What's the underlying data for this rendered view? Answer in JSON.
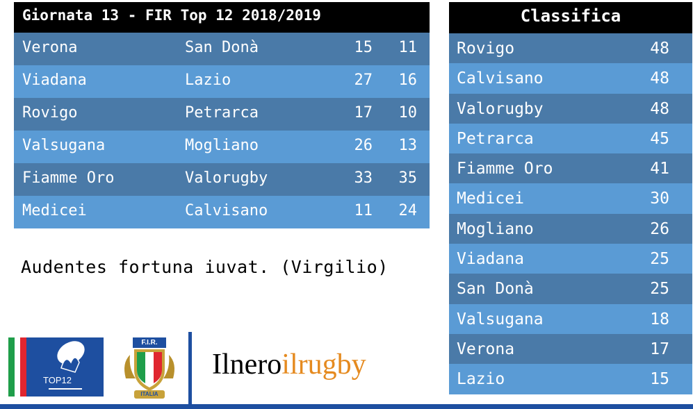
{
  "results": {
    "title": "Giornata 13 - FIR Top 12 2018/2019",
    "matches": [
      {
        "home": "Verona",
        "away": "San Donà",
        "home_score": "15",
        "away_score": "11"
      },
      {
        "home": "Viadana",
        "away": "Lazio",
        "home_score": "27",
        "away_score": "16"
      },
      {
        "home": "Rovigo",
        "away": "Petrarca",
        "home_score": "17",
        "away_score": "10"
      },
      {
        "home": "Valsugana",
        "away": "Mogliano",
        "home_score": "26",
        "away_score": "13"
      },
      {
        "home": "Fiamme Oro",
        "away": "Valorugby",
        "home_score": "33",
        "away_score": "35"
      },
      {
        "home": "Medicei",
        "away": "Calvisano",
        "home_score": "11",
        "away_score": "24"
      }
    ]
  },
  "quote": "Audentes fortuna iuvat. (Virgilio)",
  "standings": {
    "title": "Classifica",
    "rows": [
      {
        "team": "Rovigo",
        "points": "48"
      },
      {
        "team": "Calvisano",
        "points": "48"
      },
      {
        "team": "Valorugby",
        "points": "48"
      },
      {
        "team": "Petrarca",
        "points": "45"
      },
      {
        "team": "Fiamme Oro",
        "points": "41"
      },
      {
        "team": "Medicei",
        "points": "30"
      },
      {
        "team": "Mogliano",
        "points": "26"
      },
      {
        "team": "Viadana",
        "points": "25"
      },
      {
        "team": "San Donà",
        "points": "25"
      },
      {
        "team": "Valsugana",
        "points": "18"
      },
      {
        "team": "Verona",
        "points": "17"
      },
      {
        "team": "Lazio",
        "points": "15"
      }
    ]
  },
  "logos": {
    "top12_label": "TOP12",
    "fir_label": "F.I.R.",
    "fir_banner": "ITALIA",
    "brand_part1": "Ilnero",
    "brand_part2": "ilrugby"
  },
  "colors": {
    "row_dark": "#4a7aa8",
    "row_light": "#5a9bd5",
    "header_bg": "#000000",
    "accent_blue": "#1e4fa0",
    "brand_orange": "#e58a1f"
  }
}
